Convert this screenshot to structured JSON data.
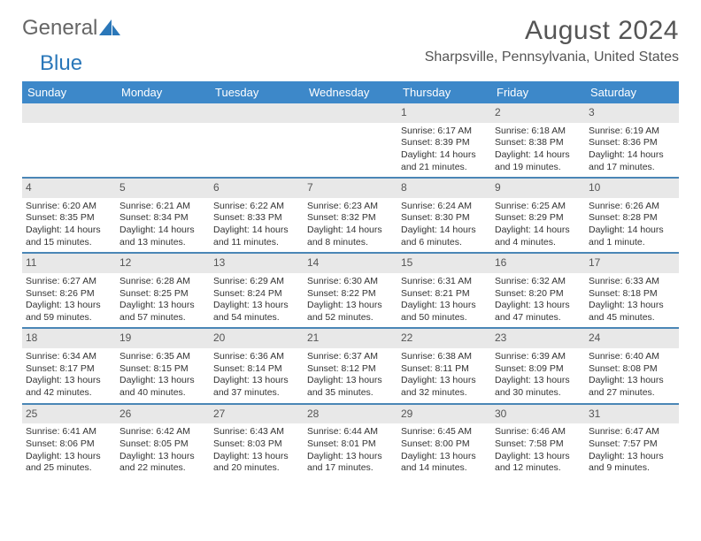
{
  "logo": {
    "text_general": "General",
    "text_blue": "Blue"
  },
  "title": {
    "month": "August 2024",
    "location": "Sharpsville, Pennsylvania, United States"
  },
  "day_headers": [
    "Sunday",
    "Monday",
    "Tuesday",
    "Wednesday",
    "Thursday",
    "Friday",
    "Saturday"
  ],
  "colors": {
    "header_bg": "#3d88c9",
    "header_fg": "#ffffff",
    "day_num_bg": "#e8e8e8",
    "day_num_fg": "#555555",
    "week_border": "#4a86b6",
    "body_text": "#333333",
    "title_fg": "#555555",
    "logo_gray": "#666666",
    "logo_blue": "#2a77b9"
  },
  "weeks": [
    [
      null,
      null,
      null,
      null,
      {
        "n": "1",
        "sr": "Sunrise: 6:17 AM",
        "ss": "Sunset: 8:39 PM",
        "d1": "Daylight: 14 hours",
        "d2": "and 21 minutes."
      },
      {
        "n": "2",
        "sr": "Sunrise: 6:18 AM",
        "ss": "Sunset: 8:38 PM",
        "d1": "Daylight: 14 hours",
        "d2": "and 19 minutes."
      },
      {
        "n": "3",
        "sr": "Sunrise: 6:19 AM",
        "ss": "Sunset: 8:36 PM",
        "d1": "Daylight: 14 hours",
        "d2": "and 17 minutes."
      }
    ],
    [
      {
        "n": "4",
        "sr": "Sunrise: 6:20 AM",
        "ss": "Sunset: 8:35 PM",
        "d1": "Daylight: 14 hours",
        "d2": "and 15 minutes."
      },
      {
        "n": "5",
        "sr": "Sunrise: 6:21 AM",
        "ss": "Sunset: 8:34 PM",
        "d1": "Daylight: 14 hours",
        "d2": "and 13 minutes."
      },
      {
        "n": "6",
        "sr": "Sunrise: 6:22 AM",
        "ss": "Sunset: 8:33 PM",
        "d1": "Daylight: 14 hours",
        "d2": "and 11 minutes."
      },
      {
        "n": "7",
        "sr": "Sunrise: 6:23 AM",
        "ss": "Sunset: 8:32 PM",
        "d1": "Daylight: 14 hours",
        "d2": "and 8 minutes."
      },
      {
        "n": "8",
        "sr": "Sunrise: 6:24 AM",
        "ss": "Sunset: 8:30 PM",
        "d1": "Daylight: 14 hours",
        "d2": "and 6 minutes."
      },
      {
        "n": "9",
        "sr": "Sunrise: 6:25 AM",
        "ss": "Sunset: 8:29 PM",
        "d1": "Daylight: 14 hours",
        "d2": "and 4 minutes."
      },
      {
        "n": "10",
        "sr": "Sunrise: 6:26 AM",
        "ss": "Sunset: 8:28 PM",
        "d1": "Daylight: 14 hours",
        "d2": "and 1 minute."
      }
    ],
    [
      {
        "n": "11",
        "sr": "Sunrise: 6:27 AM",
        "ss": "Sunset: 8:26 PM",
        "d1": "Daylight: 13 hours",
        "d2": "and 59 minutes."
      },
      {
        "n": "12",
        "sr": "Sunrise: 6:28 AM",
        "ss": "Sunset: 8:25 PM",
        "d1": "Daylight: 13 hours",
        "d2": "and 57 minutes."
      },
      {
        "n": "13",
        "sr": "Sunrise: 6:29 AM",
        "ss": "Sunset: 8:24 PM",
        "d1": "Daylight: 13 hours",
        "d2": "and 54 minutes."
      },
      {
        "n": "14",
        "sr": "Sunrise: 6:30 AM",
        "ss": "Sunset: 8:22 PM",
        "d1": "Daylight: 13 hours",
        "d2": "and 52 minutes."
      },
      {
        "n": "15",
        "sr": "Sunrise: 6:31 AM",
        "ss": "Sunset: 8:21 PM",
        "d1": "Daylight: 13 hours",
        "d2": "and 50 minutes."
      },
      {
        "n": "16",
        "sr": "Sunrise: 6:32 AM",
        "ss": "Sunset: 8:20 PM",
        "d1": "Daylight: 13 hours",
        "d2": "and 47 minutes."
      },
      {
        "n": "17",
        "sr": "Sunrise: 6:33 AM",
        "ss": "Sunset: 8:18 PM",
        "d1": "Daylight: 13 hours",
        "d2": "and 45 minutes."
      }
    ],
    [
      {
        "n": "18",
        "sr": "Sunrise: 6:34 AM",
        "ss": "Sunset: 8:17 PM",
        "d1": "Daylight: 13 hours",
        "d2": "and 42 minutes."
      },
      {
        "n": "19",
        "sr": "Sunrise: 6:35 AM",
        "ss": "Sunset: 8:15 PM",
        "d1": "Daylight: 13 hours",
        "d2": "and 40 minutes."
      },
      {
        "n": "20",
        "sr": "Sunrise: 6:36 AM",
        "ss": "Sunset: 8:14 PM",
        "d1": "Daylight: 13 hours",
        "d2": "and 37 minutes."
      },
      {
        "n": "21",
        "sr": "Sunrise: 6:37 AM",
        "ss": "Sunset: 8:12 PM",
        "d1": "Daylight: 13 hours",
        "d2": "and 35 minutes."
      },
      {
        "n": "22",
        "sr": "Sunrise: 6:38 AM",
        "ss": "Sunset: 8:11 PM",
        "d1": "Daylight: 13 hours",
        "d2": "and 32 minutes."
      },
      {
        "n": "23",
        "sr": "Sunrise: 6:39 AM",
        "ss": "Sunset: 8:09 PM",
        "d1": "Daylight: 13 hours",
        "d2": "and 30 minutes."
      },
      {
        "n": "24",
        "sr": "Sunrise: 6:40 AM",
        "ss": "Sunset: 8:08 PM",
        "d1": "Daylight: 13 hours",
        "d2": "and 27 minutes."
      }
    ],
    [
      {
        "n": "25",
        "sr": "Sunrise: 6:41 AM",
        "ss": "Sunset: 8:06 PM",
        "d1": "Daylight: 13 hours",
        "d2": "and 25 minutes."
      },
      {
        "n": "26",
        "sr": "Sunrise: 6:42 AM",
        "ss": "Sunset: 8:05 PM",
        "d1": "Daylight: 13 hours",
        "d2": "and 22 minutes."
      },
      {
        "n": "27",
        "sr": "Sunrise: 6:43 AM",
        "ss": "Sunset: 8:03 PM",
        "d1": "Daylight: 13 hours",
        "d2": "and 20 minutes."
      },
      {
        "n": "28",
        "sr": "Sunrise: 6:44 AM",
        "ss": "Sunset: 8:01 PM",
        "d1": "Daylight: 13 hours",
        "d2": "and 17 minutes."
      },
      {
        "n": "29",
        "sr": "Sunrise: 6:45 AM",
        "ss": "Sunset: 8:00 PM",
        "d1": "Daylight: 13 hours",
        "d2": "and 14 minutes."
      },
      {
        "n": "30",
        "sr": "Sunrise: 6:46 AM",
        "ss": "Sunset: 7:58 PM",
        "d1": "Daylight: 13 hours",
        "d2": "and 12 minutes."
      },
      {
        "n": "31",
        "sr": "Sunrise: 6:47 AM",
        "ss": "Sunset: 7:57 PM",
        "d1": "Daylight: 13 hours",
        "d2": "and 9 minutes."
      }
    ]
  ]
}
